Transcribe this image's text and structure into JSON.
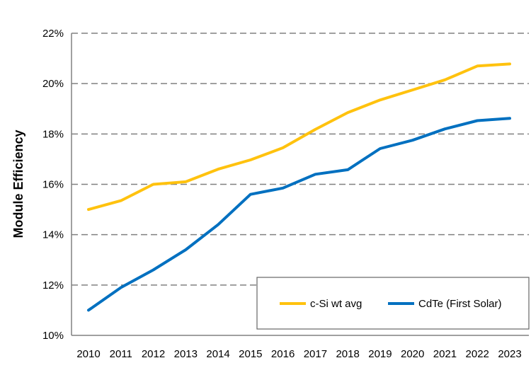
{
  "chart_data": {
    "type": "line",
    "ylabel": "Module Efficiency",
    "xlabel": "",
    "categories": [
      "2010",
      "2011",
      "2012",
      "2013",
      "2014",
      "2015",
      "2016",
      "2017",
      "2018",
      "2019",
      "2020",
      "2021",
      "2022",
      "2023"
    ],
    "ylim": [
      10,
      22
    ],
    "yticks": [
      "10%",
      "12%",
      "14%",
      "16%",
      "18%",
      "20%",
      "22%"
    ],
    "ytick_values": [
      10,
      12,
      14,
      16,
      18,
      20,
      22
    ],
    "grid": true,
    "legend_position": "bottom-right",
    "series": [
      {
        "name": "c-Si wt avg",
        "color": "#FFC20E",
        "values": [
          15.0,
          15.35,
          16.0,
          16.1,
          16.6,
          16.97,
          17.45,
          18.18,
          18.85,
          19.35,
          19.75,
          20.15,
          20.7,
          20.78
        ]
      },
      {
        "name": "CdTe (First Solar)",
        "color": "#0070C0",
        "values": [
          11.0,
          11.9,
          12.6,
          13.4,
          14.4,
          15.6,
          15.85,
          16.4,
          16.58,
          17.42,
          17.75,
          18.2,
          18.53,
          18.62
        ]
      }
    ]
  }
}
